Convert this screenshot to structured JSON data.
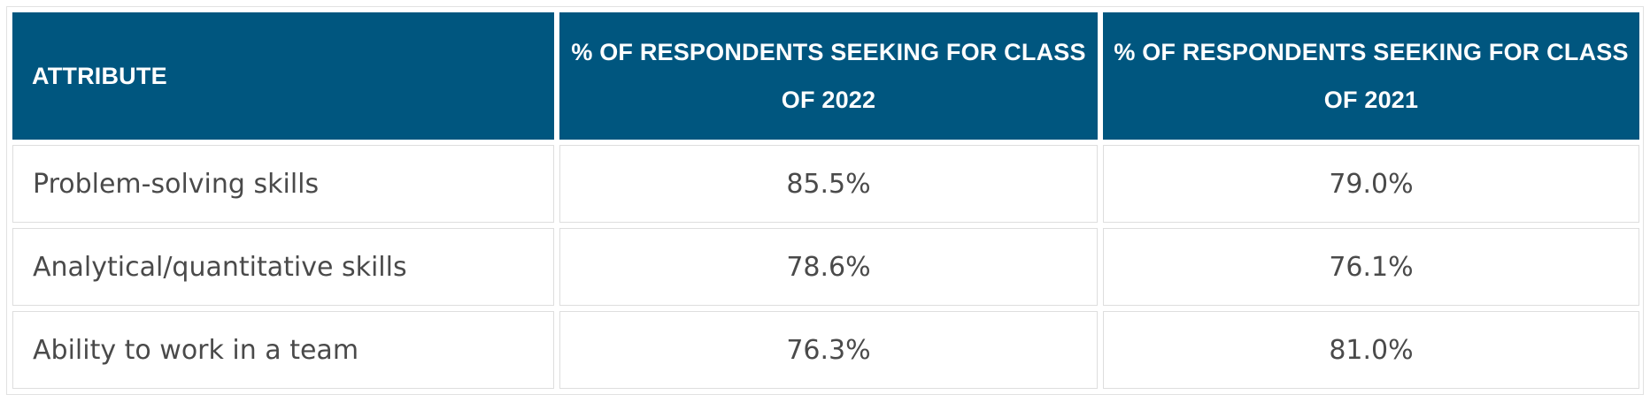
{
  "table": {
    "headers": [
      "ATTRIBUTE",
      "% OF RESPONDENTS SEEKING FOR CLASS OF 2022",
      "% OF RESPONDENTS SEEKING FOR CLASS OF 2021"
    ],
    "rows": [
      [
        "Problem-solving skills",
        "85.5%",
        "79.0%"
      ],
      [
        "Analytical/quantitative skills",
        "78.6%",
        "76.1%"
      ],
      [
        "Ability to work in a team",
        "76.3%",
        "81.0%"
      ]
    ],
    "colors": {
      "header_bg": "#00567f",
      "header_text": "#ffffff",
      "cell_text": "#4a4a4a",
      "cell_border": "#dedede"
    }
  }
}
